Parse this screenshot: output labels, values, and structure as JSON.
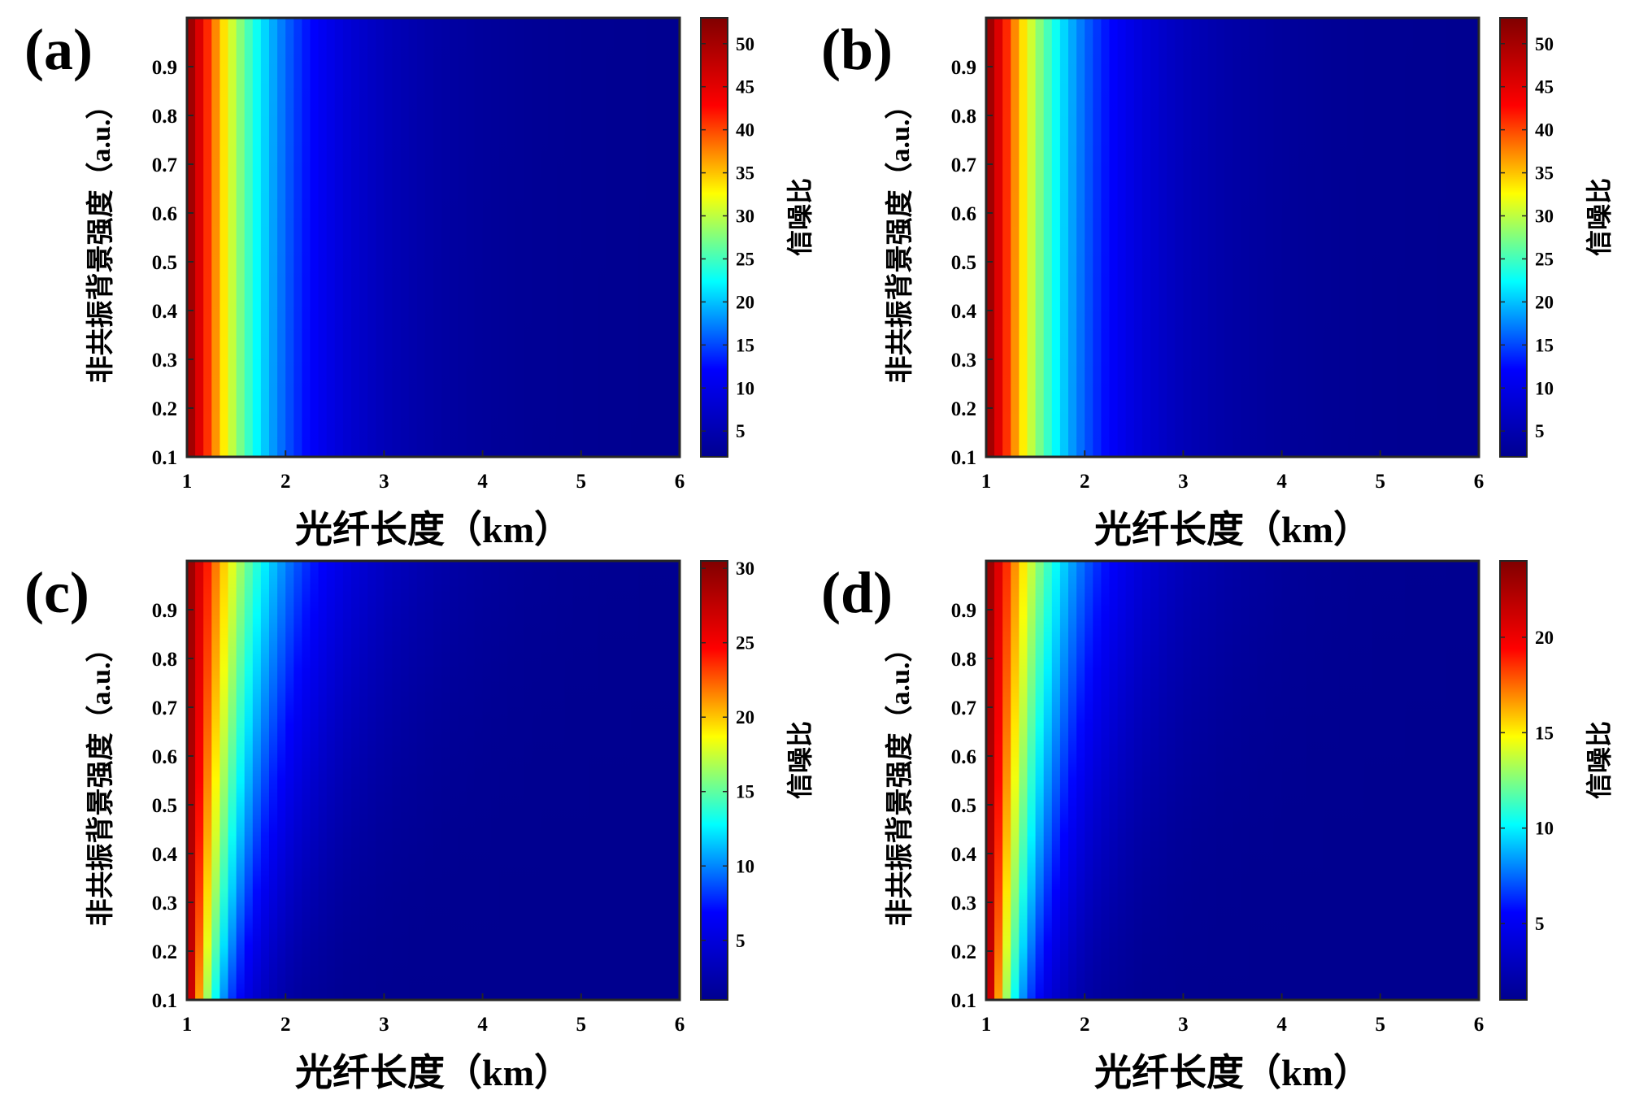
{
  "chart_data": [
    {
      "panel": "(a)",
      "type": "heatmap",
      "xlabel": "光纤长度（km）",
      "ylabel": "非共振背景强度（a.u.）",
      "colorbar_label": "信噪比",
      "x_range": [
        1,
        6
      ],
      "y_range": [
        0.1,
        1.0
      ],
      "x_ticks": [
        "1",
        "2",
        "3",
        "4",
        "5",
        "6"
      ],
      "y_ticks": [
        "0.1",
        "0.2",
        "0.3",
        "0.4",
        "0.5",
        "0.6",
        "0.7",
        "0.8",
        "0.9"
      ],
      "colorbar_range": [
        2,
        53
      ],
      "colorbar_ticks": [
        "5",
        "10",
        "15",
        "20",
        "25",
        "30",
        "35",
        "40",
        "45",
        "50"
      ],
      "decay_km": 0.78,
      "skew": 0.03
    },
    {
      "panel": "(b)",
      "type": "heatmap",
      "xlabel": "光纤长度（km）",
      "ylabel": "非共振背景强度（a.u.）",
      "colorbar_label": "信噪比",
      "x_range": [
        1,
        6
      ],
      "y_range": [
        0.1,
        1.0
      ],
      "x_ticks": [
        "1",
        "2",
        "3",
        "4",
        "5",
        "6"
      ],
      "y_ticks": [
        "0.1",
        "0.2",
        "0.3",
        "0.4",
        "0.5",
        "0.6",
        "0.7",
        "0.8",
        "0.9"
      ],
      "colorbar_range": [
        2,
        53
      ],
      "colorbar_ticks": [
        "5",
        "10",
        "15",
        "20",
        "25",
        "30",
        "35",
        "40",
        "45",
        "50"
      ],
      "decay_km": 0.78,
      "skew": 0.03
    },
    {
      "panel": "(c)",
      "type": "heatmap",
      "xlabel": "光纤长度（km）",
      "ylabel": "非共振背景强度（a.u.）",
      "colorbar_label": "信噪比",
      "x_range": [
        1,
        6
      ],
      "y_range": [
        0.1,
        1.0
      ],
      "x_ticks": [
        "1",
        "2",
        "3",
        "4",
        "5",
        "6"
      ],
      "y_ticks": [
        "0.1",
        "0.2",
        "0.3",
        "0.4",
        "0.5",
        "0.6",
        "0.7",
        "0.8",
        "0.9"
      ],
      "colorbar_range": [
        1,
        30.5
      ],
      "colorbar_ticks": [
        "5",
        "10",
        "15",
        "20",
        "25",
        "30"
      ],
      "decay_km": 0.58,
      "skew": 0.75
    },
    {
      "panel": "(d)",
      "type": "heatmap",
      "xlabel": "光纤长度（km）",
      "ylabel": "非共振背景强度（a.u.）",
      "colorbar_label": "信噪比",
      "x_range": [
        1,
        6
      ],
      "y_range": [
        0.1,
        1.0
      ],
      "x_ticks": [
        "1",
        "2",
        "3",
        "4",
        "5",
        "6"
      ],
      "y_ticks": [
        "0.1",
        "0.2",
        "0.3",
        "0.4",
        "0.5",
        "0.6",
        "0.7",
        "0.8",
        "0.9"
      ],
      "colorbar_range": [
        1,
        24
      ],
      "colorbar_ticks": [
        "5",
        "10",
        "15",
        "20"
      ],
      "decay_km": 0.55,
      "skew": 0.7
    }
  ],
  "colormap": [
    "#00008f",
    "#0000ff",
    "#00ffff",
    "#ffff00",
    "#ff0000",
    "#800000"
  ]
}
